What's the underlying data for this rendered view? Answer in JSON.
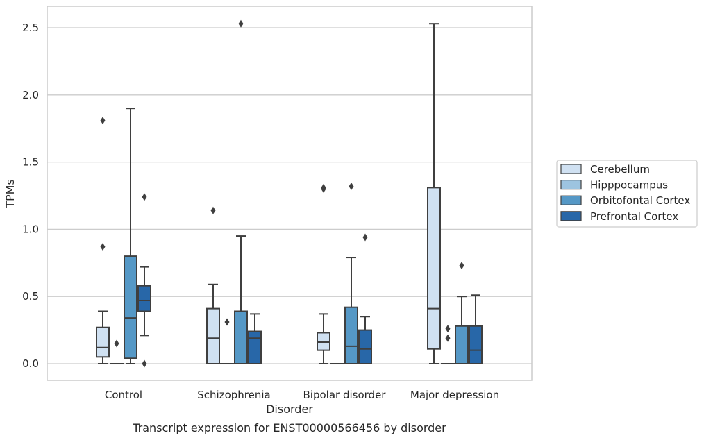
{
  "chart_data": {
    "type": "box",
    "title": "",
    "caption": "Transcript expression for ENST00000566456 by disorder",
    "xlabel": "Disorder",
    "ylabel": "TPMs",
    "ylim": [
      -0.12,
      2.66
    ],
    "yticks": [
      "0.0",
      "0.5",
      "1.0",
      "1.5",
      "2.0",
      "2.5"
    ],
    "ytick_values": [
      0,
      0.5,
      1.0,
      1.5,
      2.0,
      2.5
    ],
    "grid": "horizontal",
    "legend_position": "right",
    "categories": [
      "Control",
      "Schizophrenia",
      "Bipolar disorder",
      "Major depression"
    ],
    "series": [
      {
        "name": "Cerebellum",
        "color": "#d0e1f2",
        "boxes": [
          {
            "min": 0.0,
            "q1": 0.05,
            "median": 0.12,
            "q3": 0.27,
            "max": 0.39,
            "outliers": [
              0.87,
              1.81
            ]
          },
          {
            "min": 0.0,
            "q1": 0.0,
            "median": 0.19,
            "q3": 0.41,
            "max": 0.59,
            "outliers": [
              1.14
            ]
          },
          {
            "min": 0.0,
            "q1": 0.1,
            "median": 0.16,
            "q3": 0.23,
            "max": 0.37,
            "outliers": [
              1.3,
              1.31
            ]
          },
          {
            "min": 0.0,
            "q1": 0.11,
            "median": 0.41,
            "q3": 1.31,
            "max": 2.53,
            "outliers": []
          }
        ]
      },
      {
        "name": "Hipppocampus",
        "color": "#9dc4e0",
        "boxes": [
          {
            "min": 0.0,
            "q1": 0.0,
            "median": 0.0,
            "q3": 0.0,
            "max": 0.0,
            "outliers": [
              0.15
            ]
          },
          {
            "min": 0.0,
            "q1": 0.0,
            "median": 0.0,
            "q3": 0.0,
            "max": 0.0,
            "outliers": [
              0.31
            ]
          },
          {
            "min": 0.0,
            "q1": 0.0,
            "median": 0.0,
            "q3": 0.0,
            "max": 0.0,
            "outliers": []
          },
          {
            "min": 0.0,
            "q1": 0.0,
            "median": 0.0,
            "q3": 0.0,
            "max": 0.0,
            "outliers": [
              0.19,
              0.26
            ]
          }
        ]
      },
      {
        "name": "Orbitofontal Cortex",
        "color": "#5598c6",
        "boxes": [
          {
            "min": 0.0,
            "q1": 0.04,
            "median": 0.34,
            "q3": 0.8,
            "max": 1.9,
            "outliers": []
          },
          {
            "min": 0.0,
            "q1": 0.0,
            "median": 0.0,
            "q3": 0.39,
            "max": 0.95,
            "outliers": [
              2.53
            ]
          },
          {
            "min": 0.0,
            "q1": 0.0,
            "median": 0.13,
            "q3": 0.42,
            "max": 0.79,
            "outliers": [
              1.32
            ]
          },
          {
            "min": 0.0,
            "q1": 0.0,
            "median": 0.0,
            "q3": 0.28,
            "max": 0.5,
            "outliers": [
              0.73
            ]
          }
        ]
      },
      {
        "name": "Prefrontal Cortex",
        "color": "#2867a8",
        "boxes": [
          {
            "min": 0.21,
            "q1": 0.39,
            "median": 0.47,
            "q3": 0.58,
            "max": 0.72,
            "outliers": [
              1.24,
              0.0
            ]
          },
          {
            "min": 0.0,
            "q1": 0.0,
            "median": 0.19,
            "q3": 0.24,
            "max": 0.37,
            "outliers": []
          },
          {
            "min": 0.0,
            "q1": 0.0,
            "median": 0.11,
            "q3": 0.25,
            "max": 0.35,
            "outliers": [
              0.94
            ]
          },
          {
            "min": 0.0,
            "q1": 0.0,
            "median": 0.1,
            "q3": 0.28,
            "max": 0.51,
            "outliers": []
          }
        ]
      }
    ]
  }
}
